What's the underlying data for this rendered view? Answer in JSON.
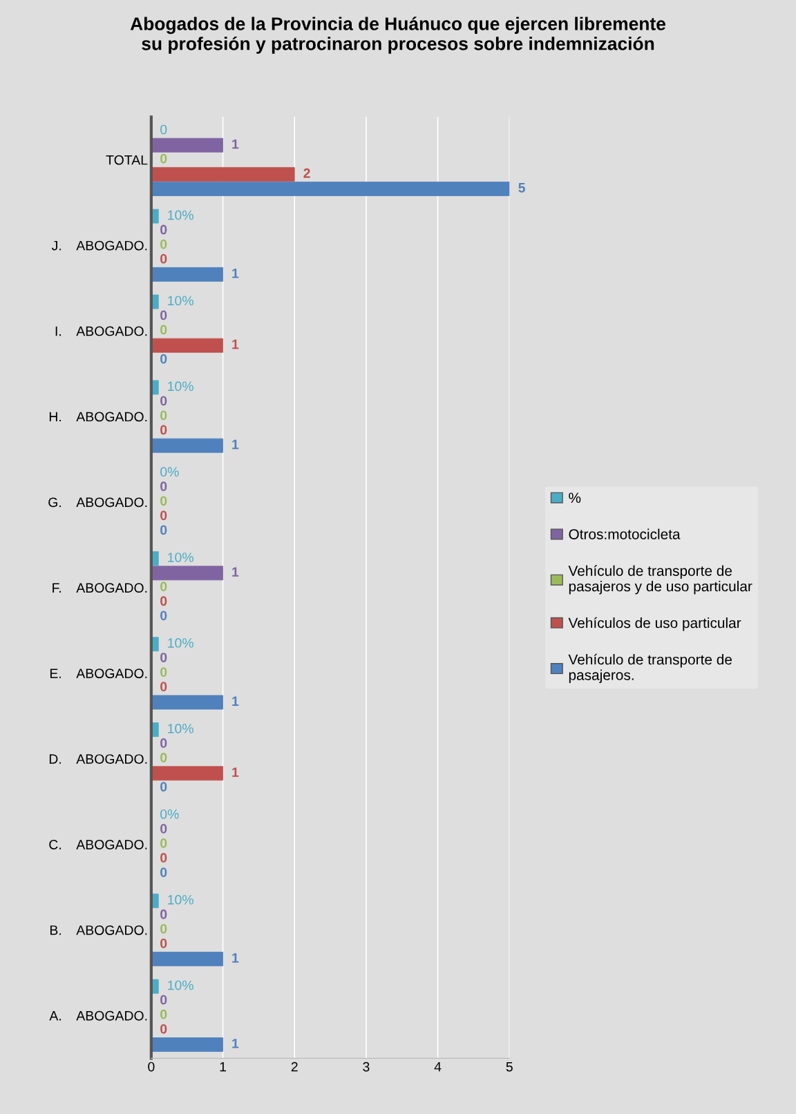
{
  "chart_data": {
    "type": "bar",
    "orientation": "horizontal",
    "title": "Abogados de la Provincia de Huánuco que ejercen libremente\nsu profesión y patrocinaron procesos sobre indemnización",
    "categories": [
      "TOTAL",
      "J.    ABOGADO.",
      "I.    ABOGADO.",
      "H.    ABOGADO.",
      "G.    ABOGADO.",
      "F.    ABOGADO.",
      "E.    ABOGADO.",
      "D.    ABOGADO.",
      "C.    ABOGADO.",
      "B.    ABOGADO.",
      "A.    ABOGADO."
    ],
    "series": [
      {
        "name": "%",
        "color": "#4bacc6",
        "values": [
          0,
          0.1,
          0.1,
          0.1,
          0,
          0.1,
          0.1,
          0.1,
          0,
          0.1,
          0.1
        ],
        "value_labels": [
          "0",
          "10%",
          "10%",
          "10%",
          "0%",
          "10%",
          "10%",
          "10%",
          "0%",
          "10%",
          "10%"
        ]
      },
      {
        "name": "Otros:motocicleta",
        "color": "#8064a2",
        "values": [
          1,
          0,
          0,
          0,
          0,
          1,
          0,
          0,
          0,
          0,
          0
        ],
        "value_labels": [
          "1",
          "0",
          "0",
          "0",
          "0",
          "1",
          "0",
          "0",
          "0",
          "0",
          "0"
        ]
      },
      {
        "name": "Vehículo de transporte de\npasajeros y de uso particular",
        "color": "#9bbb59",
        "values": [
          0,
          0,
          0,
          0,
          0,
          0,
          0,
          0,
          0,
          0,
          0
        ],
        "value_labels": [
          "0",
          "0",
          "0",
          "0",
          "0",
          "0",
          "0",
          "0",
          "0",
          "0",
          "0"
        ]
      },
      {
        "name": "Vehículos de uso particular",
        "color": "#c0504d",
        "values": [
          2,
          0,
          1,
          0,
          0,
          0,
          0,
          1,
          0,
          0,
          0
        ],
        "value_labels": [
          "2",
          "0",
          "1",
          "0",
          "0",
          "0",
          "0",
          "1",
          "0",
          "0",
          "0"
        ]
      },
      {
        "name": "Vehículo de transporte de\npasajeros.",
        "color": "#4f81bd",
        "values": [
          5,
          1,
          0,
          1,
          0,
          0,
          1,
          0,
          0,
          1,
          1
        ],
        "value_labels": [
          "5",
          "1",
          "0",
          "1",
          "0",
          "0",
          "1",
          "0",
          "0",
          "1",
          "1"
        ]
      }
    ],
    "xlim": [
      0,
      5
    ],
    "xticks": [
      0,
      1,
      2,
      3,
      4,
      5
    ],
    "grid": "x",
    "legend": "right"
  }
}
